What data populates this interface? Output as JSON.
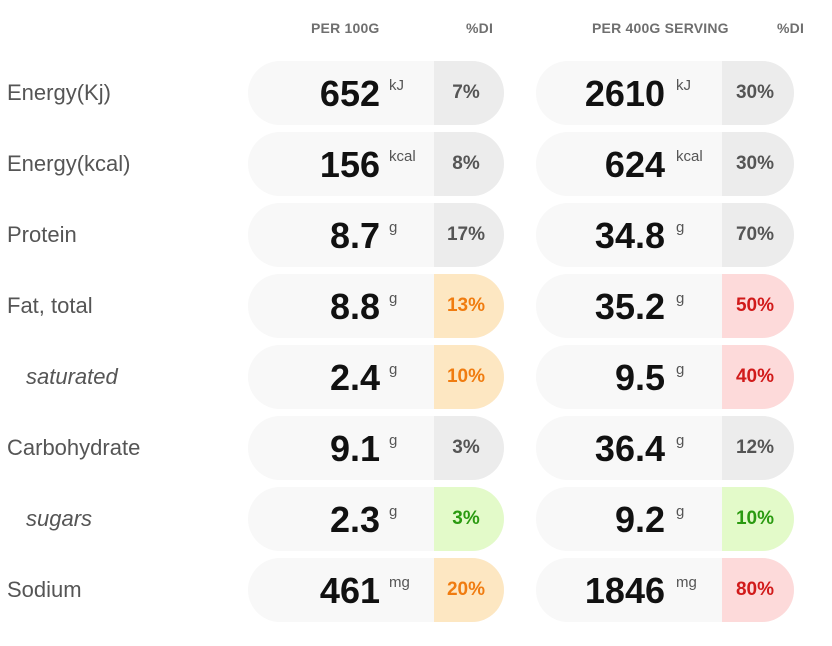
{
  "headers": {
    "per100": "PER 100G",
    "di1": "%DI",
    "perServing": "PER 400G SERVING",
    "di2": "%DI"
  },
  "rows": [
    {
      "label": "Energy(Kj)",
      "sub": false,
      "v1": "652",
      "u1": "kJ",
      "p1": "7%",
      "c1": "grey",
      "v2": "2610",
      "u2": "kJ",
      "p2": "30%",
      "c2": "grey"
    },
    {
      "label": "Energy(kcal)",
      "sub": false,
      "v1": "156",
      "u1": "kcal",
      "p1": "8%",
      "c1": "grey",
      "v2": "624",
      "u2": "kcal",
      "p2": "30%",
      "c2": "grey"
    },
    {
      "label": "Protein",
      "sub": false,
      "v1": "8.7",
      "u1": "g",
      "p1": "17%",
      "c1": "grey",
      "v2": "34.8",
      "u2": "g",
      "p2": "70%",
      "c2": "grey"
    },
    {
      "label": "Fat, total",
      "sub": false,
      "v1": "8.8",
      "u1": "g",
      "p1": "13%",
      "c1": "orange",
      "v2": "35.2",
      "u2": "g",
      "p2": "50%",
      "c2": "red"
    },
    {
      "label": "saturated",
      "sub": true,
      "v1": "2.4",
      "u1": "g",
      "p1": "10%",
      "c1": "orange",
      "v2": "9.5",
      "u2": "g",
      "p2": "40%",
      "c2": "red"
    },
    {
      "label": "Carbohydrate",
      "sub": false,
      "v1": "9.1",
      "u1": "g",
      "p1": "3%",
      "c1": "grey",
      "v2": "36.4",
      "u2": "g",
      "p2": "12%",
      "c2": "grey"
    },
    {
      "label": "sugars",
      "sub": true,
      "v1": "2.3",
      "u1": "g",
      "p1": "3%",
      "c1": "green",
      "v2": "9.2",
      "u2": "g",
      "p2": "10%",
      "c2": "green"
    },
    {
      "label": "Sodium",
      "sub": false,
      "v1": "461",
      "u1": "mg",
      "p1": "20%",
      "c1": "orange",
      "v2": "1846",
      "u2": "mg",
      "p2": "80%",
      "c2": "red"
    }
  ],
  "colors": {
    "grey_bg": "#ececec",
    "orange_bg": "#fde7c2",
    "orange_text": "#f07c10",
    "red_bg": "#fddada",
    "red_text": "#d11a1a",
    "green_bg": "#e3fac9",
    "green_text": "#2a9a10"
  }
}
